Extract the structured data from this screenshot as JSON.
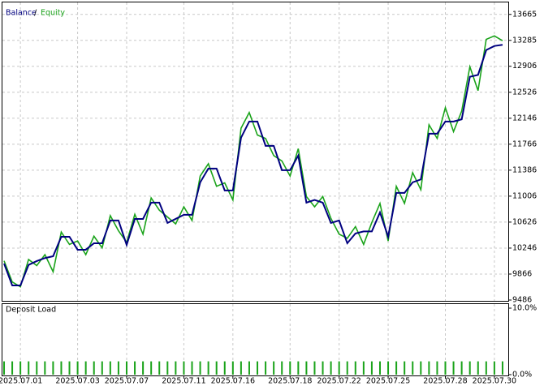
{
  "chart_data": [
    {
      "type": "line",
      "legend_separator": "/",
      "x": [
        0,
        1,
        2,
        3,
        4,
        5,
        6,
        7,
        8,
        9,
        10,
        11,
        12,
        13,
        14,
        15,
        16,
        17,
        18,
        19,
        20,
        21,
        22,
        23,
        24,
        25,
        26,
        27,
        28,
        29,
        30,
        31,
        32,
        33,
        34,
        35,
        36,
        37,
        38,
        39,
        40,
        41,
        42,
        43,
        44,
        45,
        46,
        47,
        48,
        49,
        50,
        51,
        52,
        53,
        54,
        55,
        56,
        57,
        58,
        59,
        60,
        61
      ],
      "series": [
        {
          "name": "Balance",
          "color": "#000080",
          "values": [
            10020,
            9700,
            9700,
            10000,
            10056,
            10100,
            10127,
            10412,
            10412,
            10222,
            10222,
            10317,
            10317,
            10650,
            10650,
            10293,
            10673,
            10673,
            10911,
            10911,
            10614,
            10673,
            10733,
            10733,
            11208,
            11410,
            11410,
            11089,
            11089,
            11861,
            12098,
            12098,
            11742,
            11742,
            11386,
            11386,
            11600,
            10911,
            10950,
            10911,
            10614,
            10650,
            10317,
            10460,
            10490,
            10490,
            10768,
            10412,
            11054,
            11054,
            11208,
            11250,
            11920,
            11920,
            12098,
            12098,
            12130,
            12752,
            12780,
            13143,
            13203,
            13220
          ]
        },
        {
          "name": "Equity",
          "color": "#1aa31a",
          "values": [
            10060,
            9750,
            9680,
            10080,
            9990,
            10150,
            9900,
            10480,
            10300,
            10350,
            10150,
            10420,
            10250,
            10720,
            10500,
            10330,
            10740,
            10450,
            10980,
            10800,
            10700,
            10600,
            10850,
            10650,
            11300,
            11480,
            11150,
            11200,
            10950,
            12000,
            12230,
            11900,
            11850,
            11600,
            11520,
            11300,
            11700,
            11000,
            10850,
            11000,
            10680,
            10450,
            10390,
            10560,
            10300,
            10620,
            10900,
            10350,
            11150,
            10900,
            11350,
            11100,
            12050,
            11850,
            12300,
            11950,
            12250,
            12900,
            12550,
            13300,
            13350,
            13280
          ]
        }
      ],
      "xlim": [
        -0.2,
        61.7
      ],
      "xticks": [
        {
          "value": 2,
          "label": "2025.07.01"
        },
        {
          "value": 9,
          "label": "2025.07.03"
        },
        {
          "value": 15,
          "label": "2025.07.07"
        },
        {
          "value": 22,
          "label": "2025.07.11"
        },
        {
          "value": 28,
          "label": "2025.07.16"
        },
        {
          "value": 35,
          "label": "2025.07.18"
        },
        {
          "value": 41,
          "label": "2025.07.22"
        },
        {
          "value": 47,
          "label": "2025.07.25"
        },
        {
          "value": 54,
          "label": "2025.07.28"
        },
        {
          "value": 60,
          "label": "2025.07.30"
        }
      ],
      "ylim": [
        9486,
        13840
      ],
      "yticks": [
        9486,
        9866,
        10246,
        10626,
        11006,
        11386,
        11766,
        12146,
        12526,
        12906,
        13285,
        13665
      ],
      "grid": true
    },
    {
      "type": "bar",
      "title": "Deposit Load",
      "color": "#1aa31a",
      "x": [
        0,
        1,
        2,
        3,
        4,
        5,
        6,
        7,
        8,
        9,
        10,
        11,
        12,
        13,
        14,
        15,
        16,
        17,
        18,
        19,
        20,
        21,
        22,
        23,
        24,
        25,
        26,
        27,
        28,
        29,
        30,
        31,
        32,
        33,
        34,
        35,
        36,
        37,
        38,
        39,
        40,
        41,
        42,
        43,
        44,
        45,
        46,
        47,
        48,
        49,
        50,
        51,
        52,
        53,
        54,
        55,
        56,
        57,
        58,
        59,
        60,
        61
      ],
      "values": [
        2,
        2,
        2,
        2,
        2,
        2,
        2,
        2,
        2,
        2,
        2,
        2,
        2,
        2,
        2,
        2,
        2,
        2,
        2,
        2,
        2,
        2,
        2,
        2,
        2,
        2,
        2,
        2,
        2,
        2,
        2,
        2,
        2,
        2,
        2,
        2,
        2,
        2,
        2,
        2,
        2,
        2,
        2,
        2,
        2,
        2,
        2,
        2,
        2,
        2,
        2,
        2,
        2,
        2,
        2,
        2,
        2,
        2,
        2,
        2,
        2,
        2
      ],
      "ylim": [
        0,
        10
      ],
      "yticks": [
        {
          "value": 0,
          "label": "0.0%"
        },
        {
          "value": 10,
          "label": "10.0%"
        }
      ]
    }
  ]
}
